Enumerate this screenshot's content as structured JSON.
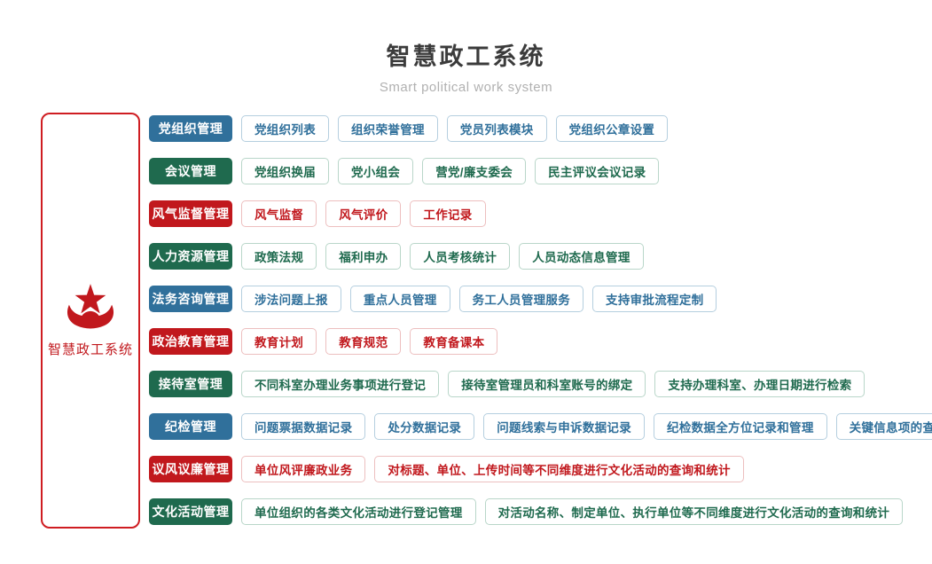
{
  "header": {
    "title": "智慧政工系统",
    "subtitle": "Smart political work system"
  },
  "sidebar": {
    "icon": "star-emblem-icon",
    "label": "智慧政工系统"
  },
  "palette": {
    "blue": {
      "fill": "#30709b",
      "border": "#b5cfdf"
    },
    "green": {
      "fill": "#1f6a4e",
      "border": "#b9d6c9"
    },
    "red": {
      "fill": "#c1181d",
      "border": "#edbfbf"
    },
    "panel_border": "#cf1d22",
    "title_color": "#3b3b3b",
    "subtitle_color": "#b1b1b1"
  },
  "rows": [
    {
      "category": "党组织管理",
      "color": "blue",
      "items": [
        "党组织列表",
        "组织荣誉管理",
        "党员列表模块",
        "党组织公章设置"
      ]
    },
    {
      "category": "会议管理",
      "color": "green",
      "items": [
        "党组织换届",
        "党小组会",
        "营党/廉支委会",
        "民主评议会议记录"
      ]
    },
    {
      "category": "风气监督管理",
      "color": "red",
      "items": [
        "风气监督",
        "风气评价",
        "工作记录"
      ]
    },
    {
      "category": "人力资源管理",
      "color": "green",
      "items": [
        "政策法规",
        "福利申办",
        "人员考核统计",
        "人员动态信息管理"
      ]
    },
    {
      "category": "法务咨询管理",
      "color": "blue",
      "items": [
        "涉法问题上报",
        "重点人员管理",
        "务工人员管理服务",
        "支持审批流程定制"
      ]
    },
    {
      "category": "政治教育管理",
      "color": "red",
      "items": [
        "教育计划",
        "教育规范",
        "教育备课本"
      ]
    },
    {
      "category": "接待室管理",
      "color": "green",
      "items": [
        "不同科室办理业务事项进行登记",
        "接待室管理员和科室账号的绑定",
        "支持办理科室、办理日期进行检索"
      ]
    },
    {
      "category": "纪检管理",
      "color": "blue",
      "items": [
        "问题票据数据记录",
        "处分数据记录",
        "问题线索与申诉数据记录",
        "纪检数据全方位记录和管理",
        "关键信息项的查询和统计"
      ]
    },
    {
      "category": "议风议廉管理",
      "color": "red",
      "items": [
        "单位风评廉政业务",
        "对标题、单位、上传时间等不同维度进行文化活动的查询和统计"
      ]
    },
    {
      "category": "文化活动管理",
      "color": "green",
      "items": [
        "单位组织的各类文化活动进行登记管理",
        "对活动名称、制定单位、执行单位等不同维度进行文化活动的查询和统计"
      ]
    }
  ]
}
